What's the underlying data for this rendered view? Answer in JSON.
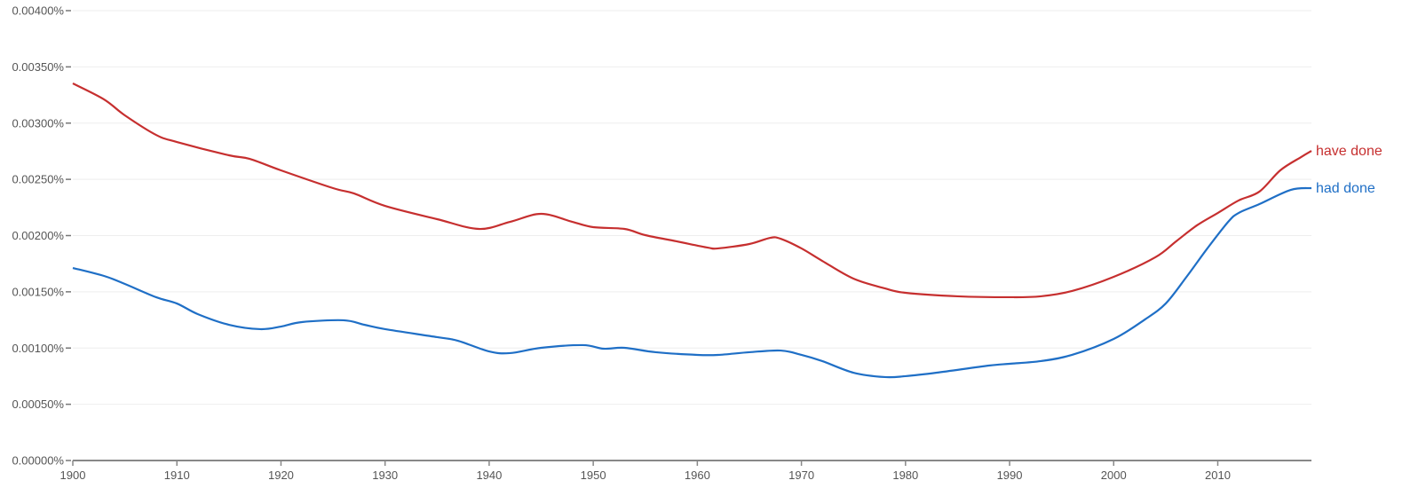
{
  "chart_data": {
    "type": "line",
    "title": "",
    "xlabel": "",
    "ylabel": "",
    "xlim": [
      1900,
      2019
    ],
    "ylim": [
      0,
      0.004
    ],
    "grid": true,
    "legend": "inline-right",
    "x_ticks": [
      1900,
      1910,
      1920,
      1930,
      1940,
      1950,
      1960,
      1970,
      1980,
      1990,
      2000,
      2010
    ],
    "y_ticks": [
      {
        "value": 0,
        "label": "0.00000%"
      },
      {
        "value": 0.0005,
        "label": "0.00050%"
      },
      {
        "value": 0.001,
        "label": "0.00100%"
      },
      {
        "value": 0.0015,
        "label": "0.00150%"
      },
      {
        "value": 0.002,
        "label": "0.00200%"
      },
      {
        "value": 0.0025,
        "label": "0.00250%"
      },
      {
        "value": 0.003,
        "label": "0.00300%"
      },
      {
        "value": 0.0035,
        "label": "0.00350%"
      },
      {
        "value": 0.004,
        "label": "0.00400%"
      }
    ],
    "series": [
      {
        "name": "have done",
        "color": "#c62f2f",
        "x": [
          1900,
          1903,
          1905,
          1908,
          1910,
          1915,
          1917,
          1920,
          1925,
          1927,
          1930,
          1935,
          1939,
          1942,
          1945,
          1948,
          1950,
          1953,
          1955,
          1958,
          1961,
          1962,
          1965,
          1967,
          1968,
          1970,
          1972,
          1975,
          1978,
          1980,
          1985,
          1990,
          1993,
          1996,
          2000,
          2004,
          2006,
          2008,
          2010,
          2012,
          2014,
          2016,
          2018,
          2019
        ],
        "y": [
          0.003353,
          0.003211,
          0.003069,
          0.002895,
          0.002832,
          0.002714,
          0.002682,
          0.00258,
          0.002422,
          0.002375,
          0.002264,
          0.002146,
          0.002059,
          0.002122,
          0.002193,
          0.002122,
          0.002075,
          0.002059,
          0.002004,
          0.001949,
          0.001893,
          0.001886,
          0.001925,
          0.00198,
          0.001972,
          0.001886,
          0.001775,
          0.001617,
          0.001531,
          0.001491,
          0.00146,
          0.001452,
          0.00146,
          0.001507,
          0.001633,
          0.001807,
          0.001949,
          0.002091,
          0.002201,
          0.002312,
          0.002391,
          0.00258,
          0.002698,
          0.002753
        ]
      },
      {
        "name": "had done",
        "color": "#1f6fc6",
        "x": [
          1900,
          1903,
          1905,
          1908,
          1910,
          1912,
          1915,
          1918,
          1920,
          1922,
          1926,
          1928,
          1930,
          1935,
          1937,
          1940,
          1942,
          1945,
          1949,
          1951,
          1953,
          1956,
          1960,
          1962,
          1965,
          1968,
          1970,
          1972,
          1975,
          1978,
          1980,
          1983,
          1988,
          1990,
          1993,
          1996,
          2000,
          2003,
          2005,
          2007,
          2009,
          2011,
          2012,
          2014,
          2017,
          2019
        ],
        "y": [
          0.001712,
          0.001641,
          0.00157,
          0.001452,
          0.001396,
          0.001302,
          0.001207,
          0.001168,
          0.001191,
          0.001231,
          0.001247,
          0.001207,
          0.001168,
          0.001097,
          0.001065,
          0.00097,
          0.000955,
          0.001002,
          0.001026,
          0.000994,
          0.001002,
          0.000963,
          0.000939,
          0.000939,
          0.000963,
          0.000978,
          0.000939,
          0.000884,
          0.000781,
          0.000742,
          0.00075,
          0.000781,
          0.000844,
          0.00086,
          0.000884,
          0.000939,
          0.001081,
          0.001254,
          0.001396,
          0.001633,
          0.001886,
          0.002122,
          0.002201,
          0.00228,
          0.002406,
          0.002422
        ]
      }
    ]
  }
}
